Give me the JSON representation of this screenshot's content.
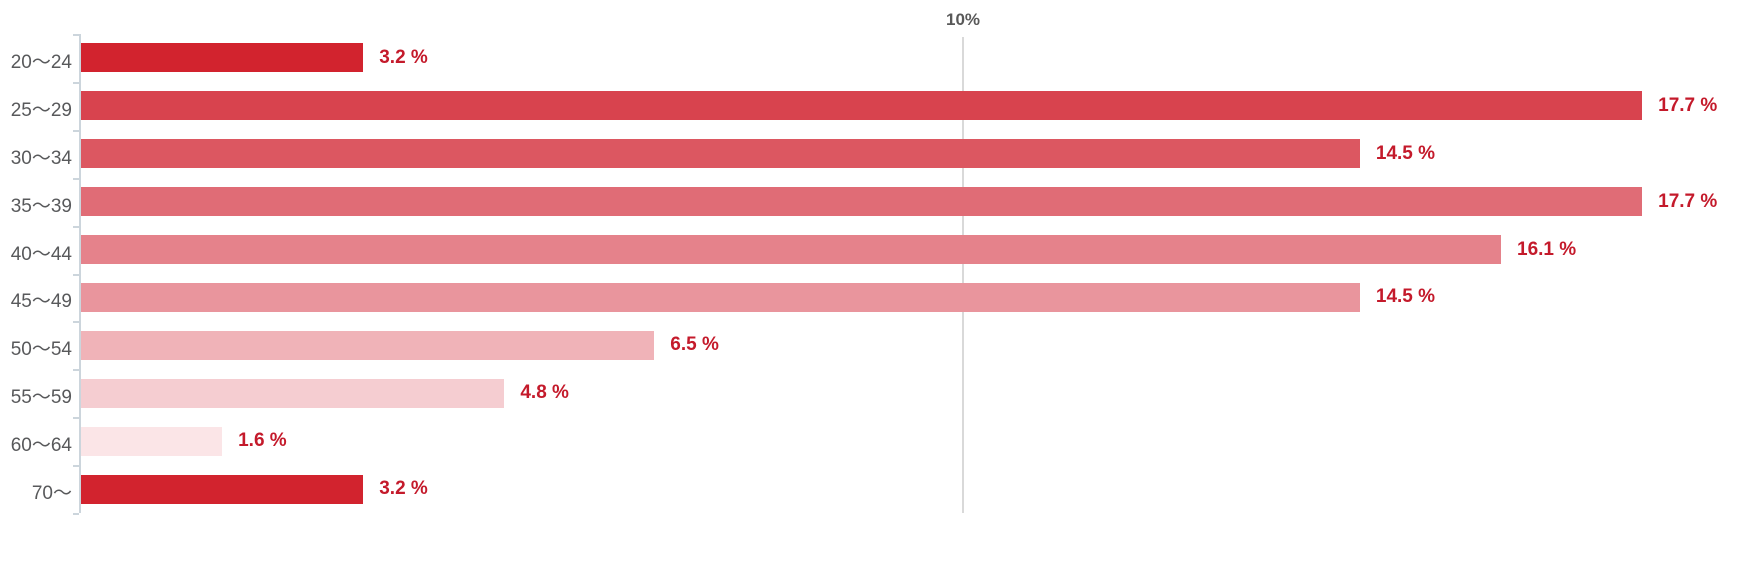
{
  "chart_data": {
    "type": "bar",
    "orientation": "horizontal",
    "categories": [
      "20〜24",
      "25〜29",
      "30〜34",
      "35〜39",
      "40〜44",
      "45〜49",
      "50〜54",
      "55〜59",
      "60〜64",
      "70〜"
    ],
    "values": [
      3.2,
      17.7,
      14.5,
      17.7,
      16.1,
      14.5,
      6.5,
      4.8,
      1.6,
      3.2
    ],
    "value_labels": [
      "3.2 %",
      "17.7 %",
      "14.5 %",
      "17.7 %",
      "16.1 %",
      "14.5 %",
      "6.5 %",
      "4.8 %",
      "1.6 %",
      "3.2 %"
    ],
    "bar_colors": [
      "#d2232e",
      "#d8434e",
      "#dc5761",
      "#e06c76",
      "#e5828b",
      "#e9959d",
      "#f0b3b8",
      "#f5cdd1",
      "#fbe5e7",
      "#d2232e"
    ],
    "x_axis": {
      "tick_label": "10%",
      "gridline_value": 10,
      "gridline_color": "#d9d9d9",
      "tick_label_color": "#595959"
    },
    "y_axis": {
      "line_color": "#ccd5dc"
    },
    "value_label_color": "#c41a2b",
    "category_label_color": "#58595b",
    "background_color": "#ffffff",
    "grid": "single vertical gridline at 10%",
    "legend": "none",
    "xlim": [
      0,
      18.8
    ]
  }
}
